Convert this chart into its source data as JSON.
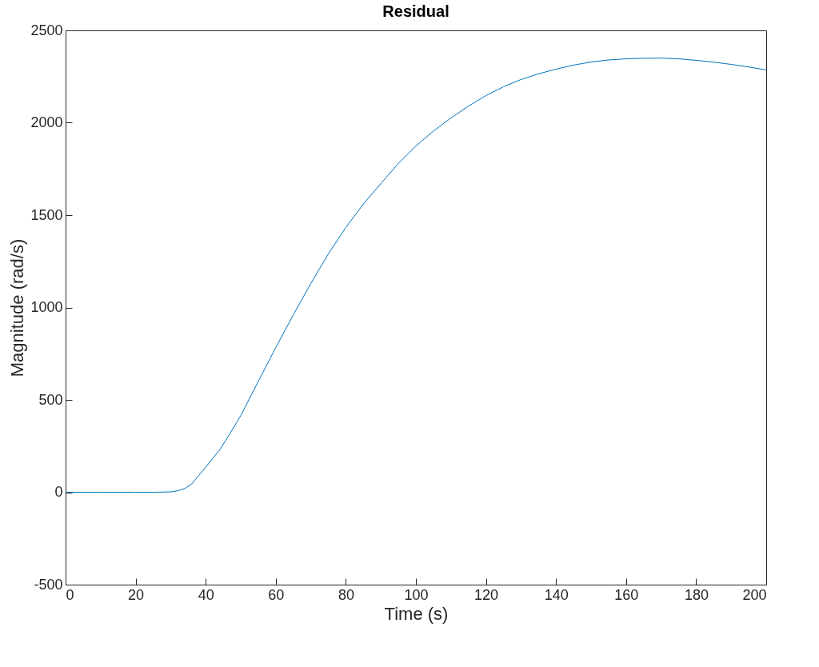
{
  "chart_data": {
    "type": "line",
    "title": "Residual",
    "xlabel": "Time (s)",
    "ylabel": "Magnitude (rad/s)",
    "xlim": [
      0,
      200
    ],
    "ylim": [
      -500,
      2500
    ],
    "xticks": [
      0,
      20,
      40,
      60,
      80,
      100,
      120,
      140,
      160,
      180,
      200
    ],
    "yticks": [
      -500,
      0,
      500,
      1000,
      1500,
      2000,
      2500
    ],
    "grid": false,
    "series": [
      {
        "color": "#0072bd",
        "x": [
          0,
          10,
          20,
          25,
          30,
          32,
          34,
          36,
          38,
          40,
          41,
          44,
          47,
          50,
          55,
          60,
          65,
          70,
          75,
          80,
          85,
          90,
          95,
          100,
          105,
          110,
          115,
          120,
          125,
          130,
          135,
          140,
          145,
          150,
          155,
          160,
          165,
          170,
          175,
          180,
          185,
          190,
          195,
          200
        ],
        "values": [
          0,
          0,
          0,
          0,
          2,
          8,
          20,
          45,
          90,
          135,
          160,
          230,
          320,
          415,
          600,
          783,
          960,
          1130,
          1290,
          1433,
          1560,
          1671,
          1780,
          1874,
          1955,
          2026,
          2090,
          2147,
          2195,
          2234,
          2265,
          2290,
          2312,
          2329,
          2340,
          2346,
          2349,
          2350,
          2346,
          2338,
          2328,
          2316,
          2302,
          2286
        ]
      }
    ]
  }
}
